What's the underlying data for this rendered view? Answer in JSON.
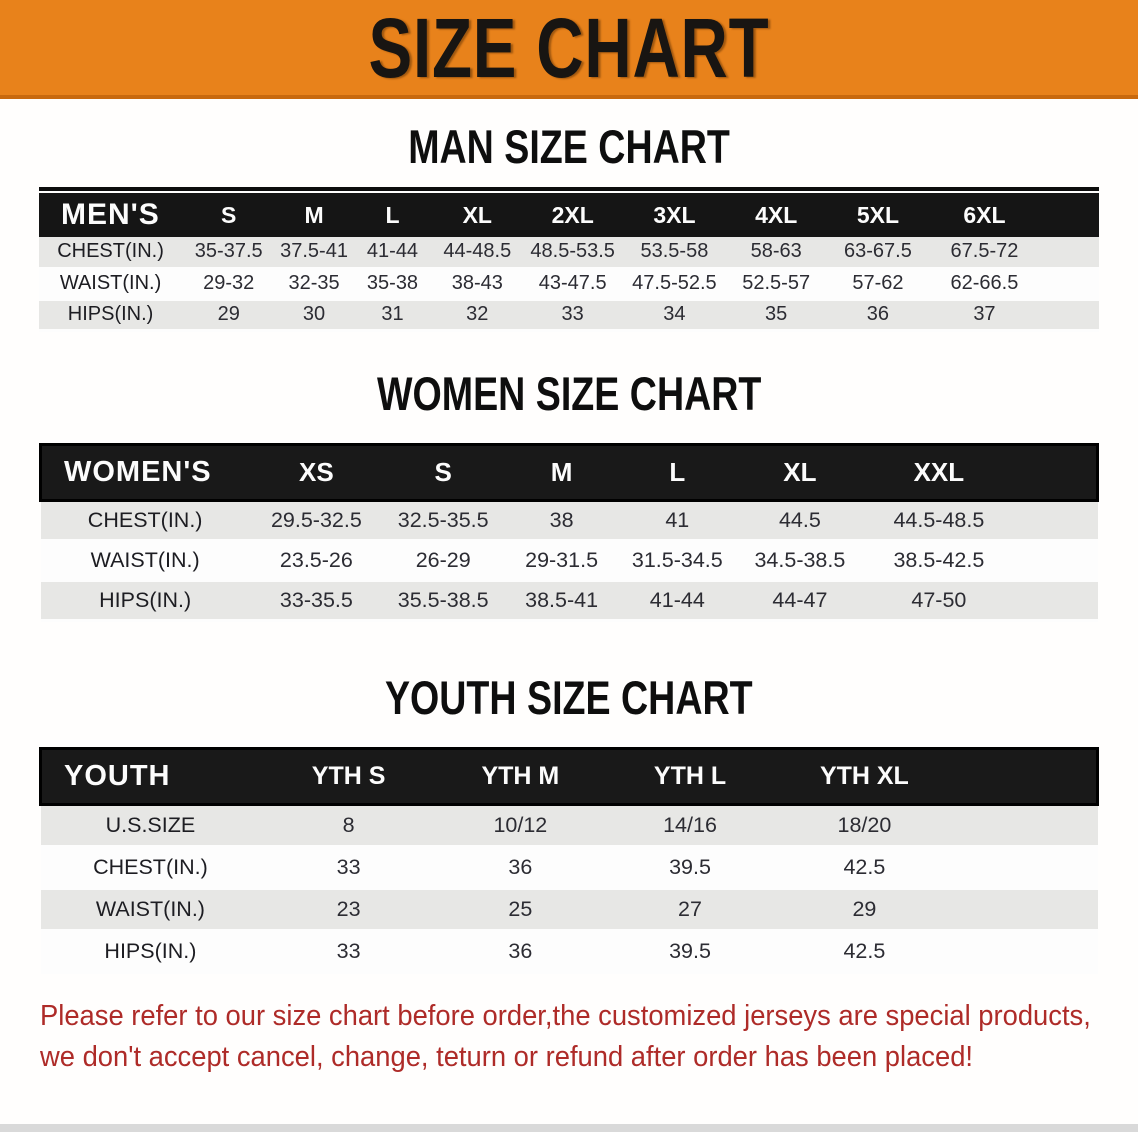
{
  "banner": {
    "title": "SIZE CHART",
    "bg_color": "#E8821B"
  },
  "colors": {
    "accent_orange": "#E8821B",
    "band_black": "#151515",
    "row_gray": "#E7E7E5",
    "disclaimer_red": "#AE2B28"
  },
  "sections": [
    {
      "title": "MAN SIZE CHART",
      "header": "MEN'S",
      "columns": [
        "S",
        "M",
        "L",
        "XL",
        "2XL",
        "3XL",
        "4XL",
        "5XL",
        "6XL"
      ],
      "rows": [
        {
          "label": "CHEST(IN.)",
          "values": [
            "35-37.5",
            "37.5-41",
            "41-44",
            "44-48.5",
            "48.5-53.5",
            "53.5-58",
            "58-63",
            "63-67.5",
            "67.5-72"
          ]
        },
        {
          "label": "WAIST(IN.)",
          "values": [
            "29-32",
            "32-35",
            "35-38",
            "38-43",
            "43-47.5",
            "47.5-52.5",
            "52.5-57",
            "57-62",
            "62-66.5"
          ]
        },
        {
          "label": "HIPS(IN.)",
          "values": [
            "29",
            "30",
            "31",
            "32",
            "33",
            "34",
            "35",
            "36",
            "37"
          ]
        }
      ]
    },
    {
      "title": "WOMEN SIZE CHART",
      "header": "WOMEN'S",
      "columns": [
        "XS",
        "S",
        "M",
        "L",
        "XL",
        "XXL"
      ],
      "rows": [
        {
          "label": "CHEST(IN.)",
          "values": [
            "29.5-32.5",
            "32.5-35.5",
            "38",
            "41",
            "44.5",
            "44.5-48.5"
          ]
        },
        {
          "label": "WAIST(IN.)",
          "values": [
            "23.5-26",
            "26-29",
            "29-31.5",
            "31.5-34.5",
            "34.5-38.5",
            "38.5-42.5"
          ]
        },
        {
          "label": "HIPS(IN.)",
          "values": [
            "33-35.5",
            "35.5-38.5",
            "38.5-41",
            "41-44",
            "44-47",
            "47-50"
          ]
        }
      ]
    },
    {
      "title": "YOUTH SIZE CHART",
      "header": "YOUTH",
      "columns": [
        "YTH S",
        "YTH M",
        "YTH L",
        "YTH XL"
      ],
      "rows": [
        {
          "label": "U.S.SIZE",
          "values": [
            "8",
            "10/12",
            "14/16",
            "18/20"
          ]
        },
        {
          "label": "CHEST(IN.)",
          "values": [
            "33",
            "36",
            "39.5",
            "42.5"
          ]
        },
        {
          "label": "WAIST(IN.)",
          "values": [
            "23",
            "25",
            "27",
            "29"
          ]
        },
        {
          "label": "HIPS(IN.)",
          "values": [
            "33",
            "36",
            "39.5",
            "42.5"
          ]
        }
      ]
    }
  ],
  "disclaimer": {
    "line1": "Please refer to our size chart before order,the customized jerseys are special products,",
    "line2": "we don't accept cancel, change, teturn or refund after order has been placed!",
    "text_color": "#AE2B28"
  }
}
